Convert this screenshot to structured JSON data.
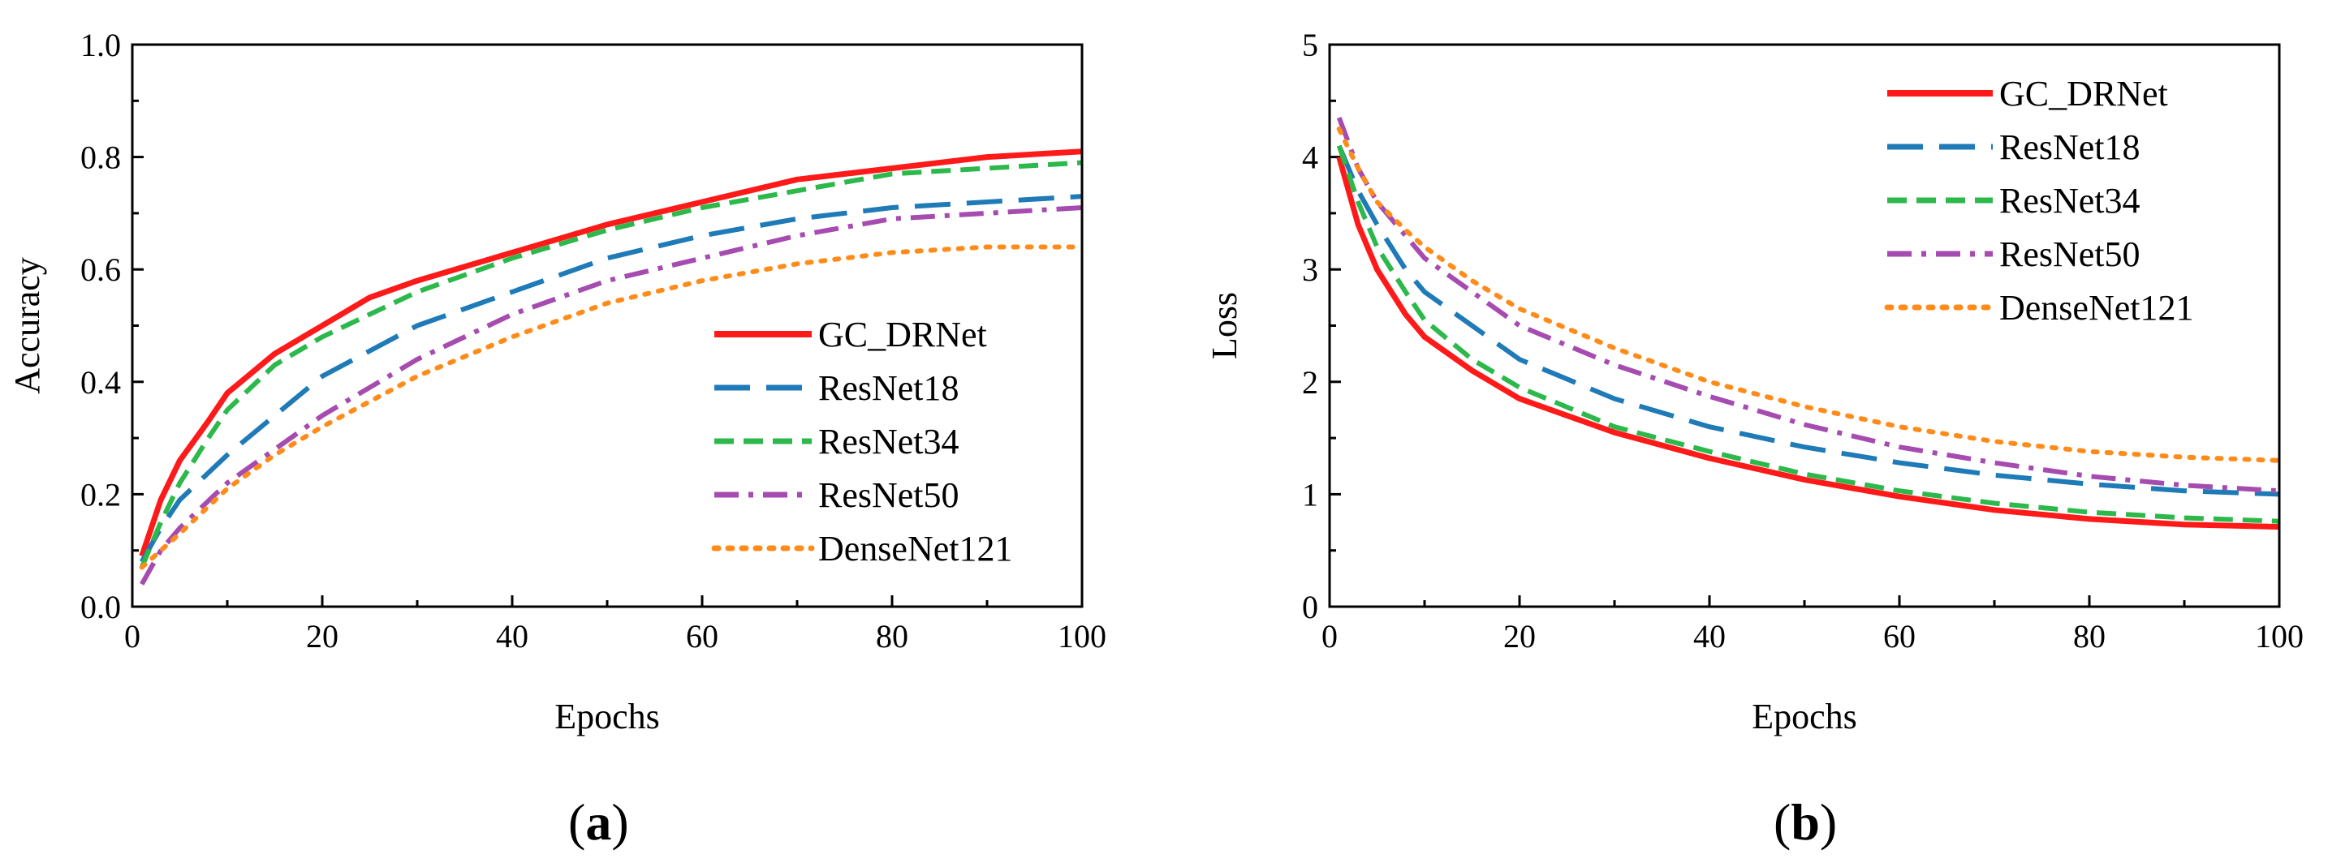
{
  "chart_data": [
    {
      "id": "a",
      "type": "line",
      "panel_label": "(a)",
      "xlabel": "Epochs",
      "ylabel": "Accuracy",
      "xlim": [
        0,
        100
      ],
      "ylim": [
        0,
        1.0
      ],
      "xticks": [
        0,
        20,
        40,
        60,
        80,
        100
      ],
      "yticks": [
        0.0,
        0.2,
        0.4,
        0.6,
        0.8,
        1.0
      ],
      "ytick_labels": [
        "0.0",
        "0.2",
        "0.4",
        "0.6",
        "0.8",
        "1.0"
      ],
      "legend_position": "bottom-right",
      "series": [
        {
          "name": "GC_DRNet",
          "color": "#ff1a1a",
          "dash": "solid",
          "x": [
            1,
            3,
            5,
            8,
            10,
            15,
            20,
            25,
            30,
            40,
            50,
            60,
            70,
            80,
            90,
            100
          ],
          "y": [
            0.09,
            0.19,
            0.26,
            0.33,
            0.38,
            0.45,
            0.5,
            0.55,
            0.58,
            0.63,
            0.68,
            0.72,
            0.76,
            0.78,
            0.8,
            0.81
          ]
        },
        {
          "name": "ResNet18",
          "color": "#1f7ab8",
          "dash": "longdash",
          "x": [
            1,
            3,
            5,
            10,
            15,
            20,
            30,
            40,
            50,
            60,
            70,
            80,
            90,
            100
          ],
          "y": [
            0.08,
            0.14,
            0.19,
            0.27,
            0.34,
            0.41,
            0.5,
            0.56,
            0.62,
            0.66,
            0.69,
            0.71,
            0.72,
            0.73
          ]
        },
        {
          "name": "ResNet34",
          "color": "#2db84b",
          "dash": "dash",
          "x": [
            1,
            3,
            5,
            8,
            10,
            15,
            20,
            25,
            30,
            40,
            50,
            60,
            70,
            80,
            90,
            100
          ],
          "y": [
            0.07,
            0.15,
            0.22,
            0.3,
            0.35,
            0.43,
            0.48,
            0.52,
            0.56,
            0.62,
            0.67,
            0.71,
            0.74,
            0.77,
            0.78,
            0.79
          ]
        },
        {
          "name": "ResNet50",
          "color": "#a64cb0",
          "dash": "dashdot",
          "x": [
            1,
            3,
            5,
            10,
            15,
            20,
            30,
            40,
            50,
            60,
            70,
            80,
            90,
            100
          ],
          "y": [
            0.04,
            0.1,
            0.14,
            0.22,
            0.28,
            0.34,
            0.44,
            0.52,
            0.58,
            0.62,
            0.66,
            0.69,
            0.7,
            0.71
          ]
        },
        {
          "name": "DenseNet121",
          "color": "#ff8c1a",
          "dash": "dot",
          "x": [
            1,
            3,
            5,
            10,
            15,
            20,
            30,
            40,
            50,
            60,
            70,
            80,
            90,
            100
          ],
          "y": [
            0.07,
            0.1,
            0.13,
            0.21,
            0.27,
            0.32,
            0.41,
            0.48,
            0.54,
            0.58,
            0.61,
            0.63,
            0.64,
            0.64
          ]
        }
      ]
    },
    {
      "id": "b",
      "type": "line",
      "panel_label": "(b)",
      "xlabel": "Epochs",
      "ylabel": "Loss",
      "xlim": [
        0,
        100
      ],
      "ylim": [
        0,
        5
      ],
      "xticks": [
        0,
        20,
        40,
        60,
        80,
        100
      ],
      "yticks": [
        0,
        1,
        2,
        3,
        4,
        5
      ],
      "ytick_labels": [
        "0",
        "1",
        "2",
        "3",
        "4",
        "5"
      ],
      "legend_position": "top-right",
      "series": [
        {
          "name": "GC_DRNet",
          "color": "#ff1a1a",
          "dash": "solid",
          "x": [
            1,
            3,
            5,
            8,
            10,
            15,
            20,
            30,
            40,
            50,
            60,
            70,
            80,
            90,
            100
          ],
          "y": [
            4.0,
            3.4,
            3.0,
            2.6,
            2.4,
            2.1,
            1.85,
            1.55,
            1.32,
            1.13,
            0.98,
            0.86,
            0.78,
            0.73,
            0.71
          ]
        },
        {
          "name": "ResNet18",
          "color": "#1f7ab8",
          "dash": "longdash",
          "x": [
            1,
            3,
            5,
            8,
            10,
            15,
            20,
            30,
            40,
            50,
            60,
            70,
            80,
            90,
            100
          ],
          "y": [
            4.1,
            3.7,
            3.4,
            3.0,
            2.8,
            2.5,
            2.2,
            1.85,
            1.6,
            1.42,
            1.28,
            1.17,
            1.09,
            1.03,
            1.0
          ]
        },
        {
          "name": "ResNet34",
          "color": "#2db84b",
          "dash": "dash",
          "x": [
            1,
            3,
            5,
            8,
            10,
            15,
            20,
            30,
            40,
            50,
            60,
            70,
            80,
            90,
            100
          ],
          "y": [
            4.1,
            3.6,
            3.2,
            2.8,
            2.55,
            2.2,
            1.95,
            1.6,
            1.38,
            1.18,
            1.03,
            0.92,
            0.84,
            0.79,
            0.76
          ]
        },
        {
          "name": "ResNet50",
          "color": "#a64cb0",
          "dash": "dashdot",
          "x": [
            1,
            3,
            5,
            8,
            10,
            15,
            20,
            30,
            40,
            50,
            60,
            70,
            80,
            90,
            100
          ],
          "y": [
            4.35,
            3.9,
            3.6,
            3.3,
            3.1,
            2.8,
            2.5,
            2.15,
            1.87,
            1.62,
            1.42,
            1.28,
            1.16,
            1.08,
            1.03
          ]
        },
        {
          "name": "DenseNet121",
          "color": "#ff8c1a",
          "dash": "dot",
          "x": [
            1,
            3,
            5,
            8,
            10,
            15,
            20,
            30,
            40,
            50,
            60,
            70,
            80,
            90,
            100
          ],
          "y": [
            4.25,
            3.9,
            3.6,
            3.35,
            3.2,
            2.9,
            2.65,
            2.3,
            2.0,
            1.78,
            1.6,
            1.47,
            1.38,
            1.33,
            1.3
          ]
        }
      ]
    }
  ]
}
